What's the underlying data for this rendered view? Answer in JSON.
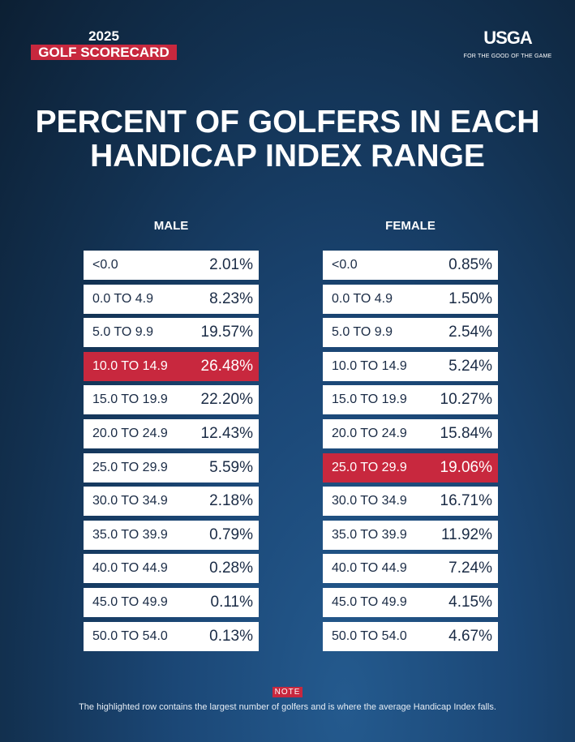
{
  "header": {
    "year": "2025",
    "series": "GOLF SCORECARD",
    "logo": "USGA",
    "tagline": "FOR THE GOOD OF THE GAME"
  },
  "colors": {
    "highlight": "#c8283e",
    "background": "#12304f",
    "row": "#ffffff",
    "text": "#1a2b45"
  },
  "chart_data": {
    "type": "table",
    "title": "PERCENT OF GOLFERS IN EACH HANDICAP INDEX RANGE",
    "categories": [
      "<0.0",
      "0.0 TO 4.9",
      "5.0 TO 9.9",
      "10.0 TO 14.9",
      "15.0 TO 19.9",
      "20.0 TO 24.9",
      "25.0 TO 29.9",
      "30.0 TO 34.9",
      "35.0 TO 39.9",
      "40.0 TO 44.9",
      "45.0 TO 49.9",
      "50.0 TO 54.0"
    ],
    "series": [
      {
        "name": "MALE",
        "values": [
          "2.01%",
          "8.23%",
          "19.57%",
          "26.48%",
          "22.20%",
          "12.43%",
          "5.59%",
          "2.18%",
          "0.79%",
          "0.28%",
          "0.11%",
          "0.13%"
        ],
        "highlighted": "10.0 TO 14.9"
      },
      {
        "name": "FEMALE",
        "values": [
          "0.85%",
          "1.50%",
          "2.54%",
          "5.24%",
          "10.27%",
          "15.84%",
          "19.06%",
          "16.71%",
          "11.92%",
          "7.24%",
          "4.15%",
          "4.67%"
        ],
        "highlighted": "25.0 TO 29.9"
      }
    ]
  },
  "note": {
    "label": "NOTE",
    "text": "The highlighted row contains the largest number of golfers and is where the average Handicap Index falls."
  }
}
